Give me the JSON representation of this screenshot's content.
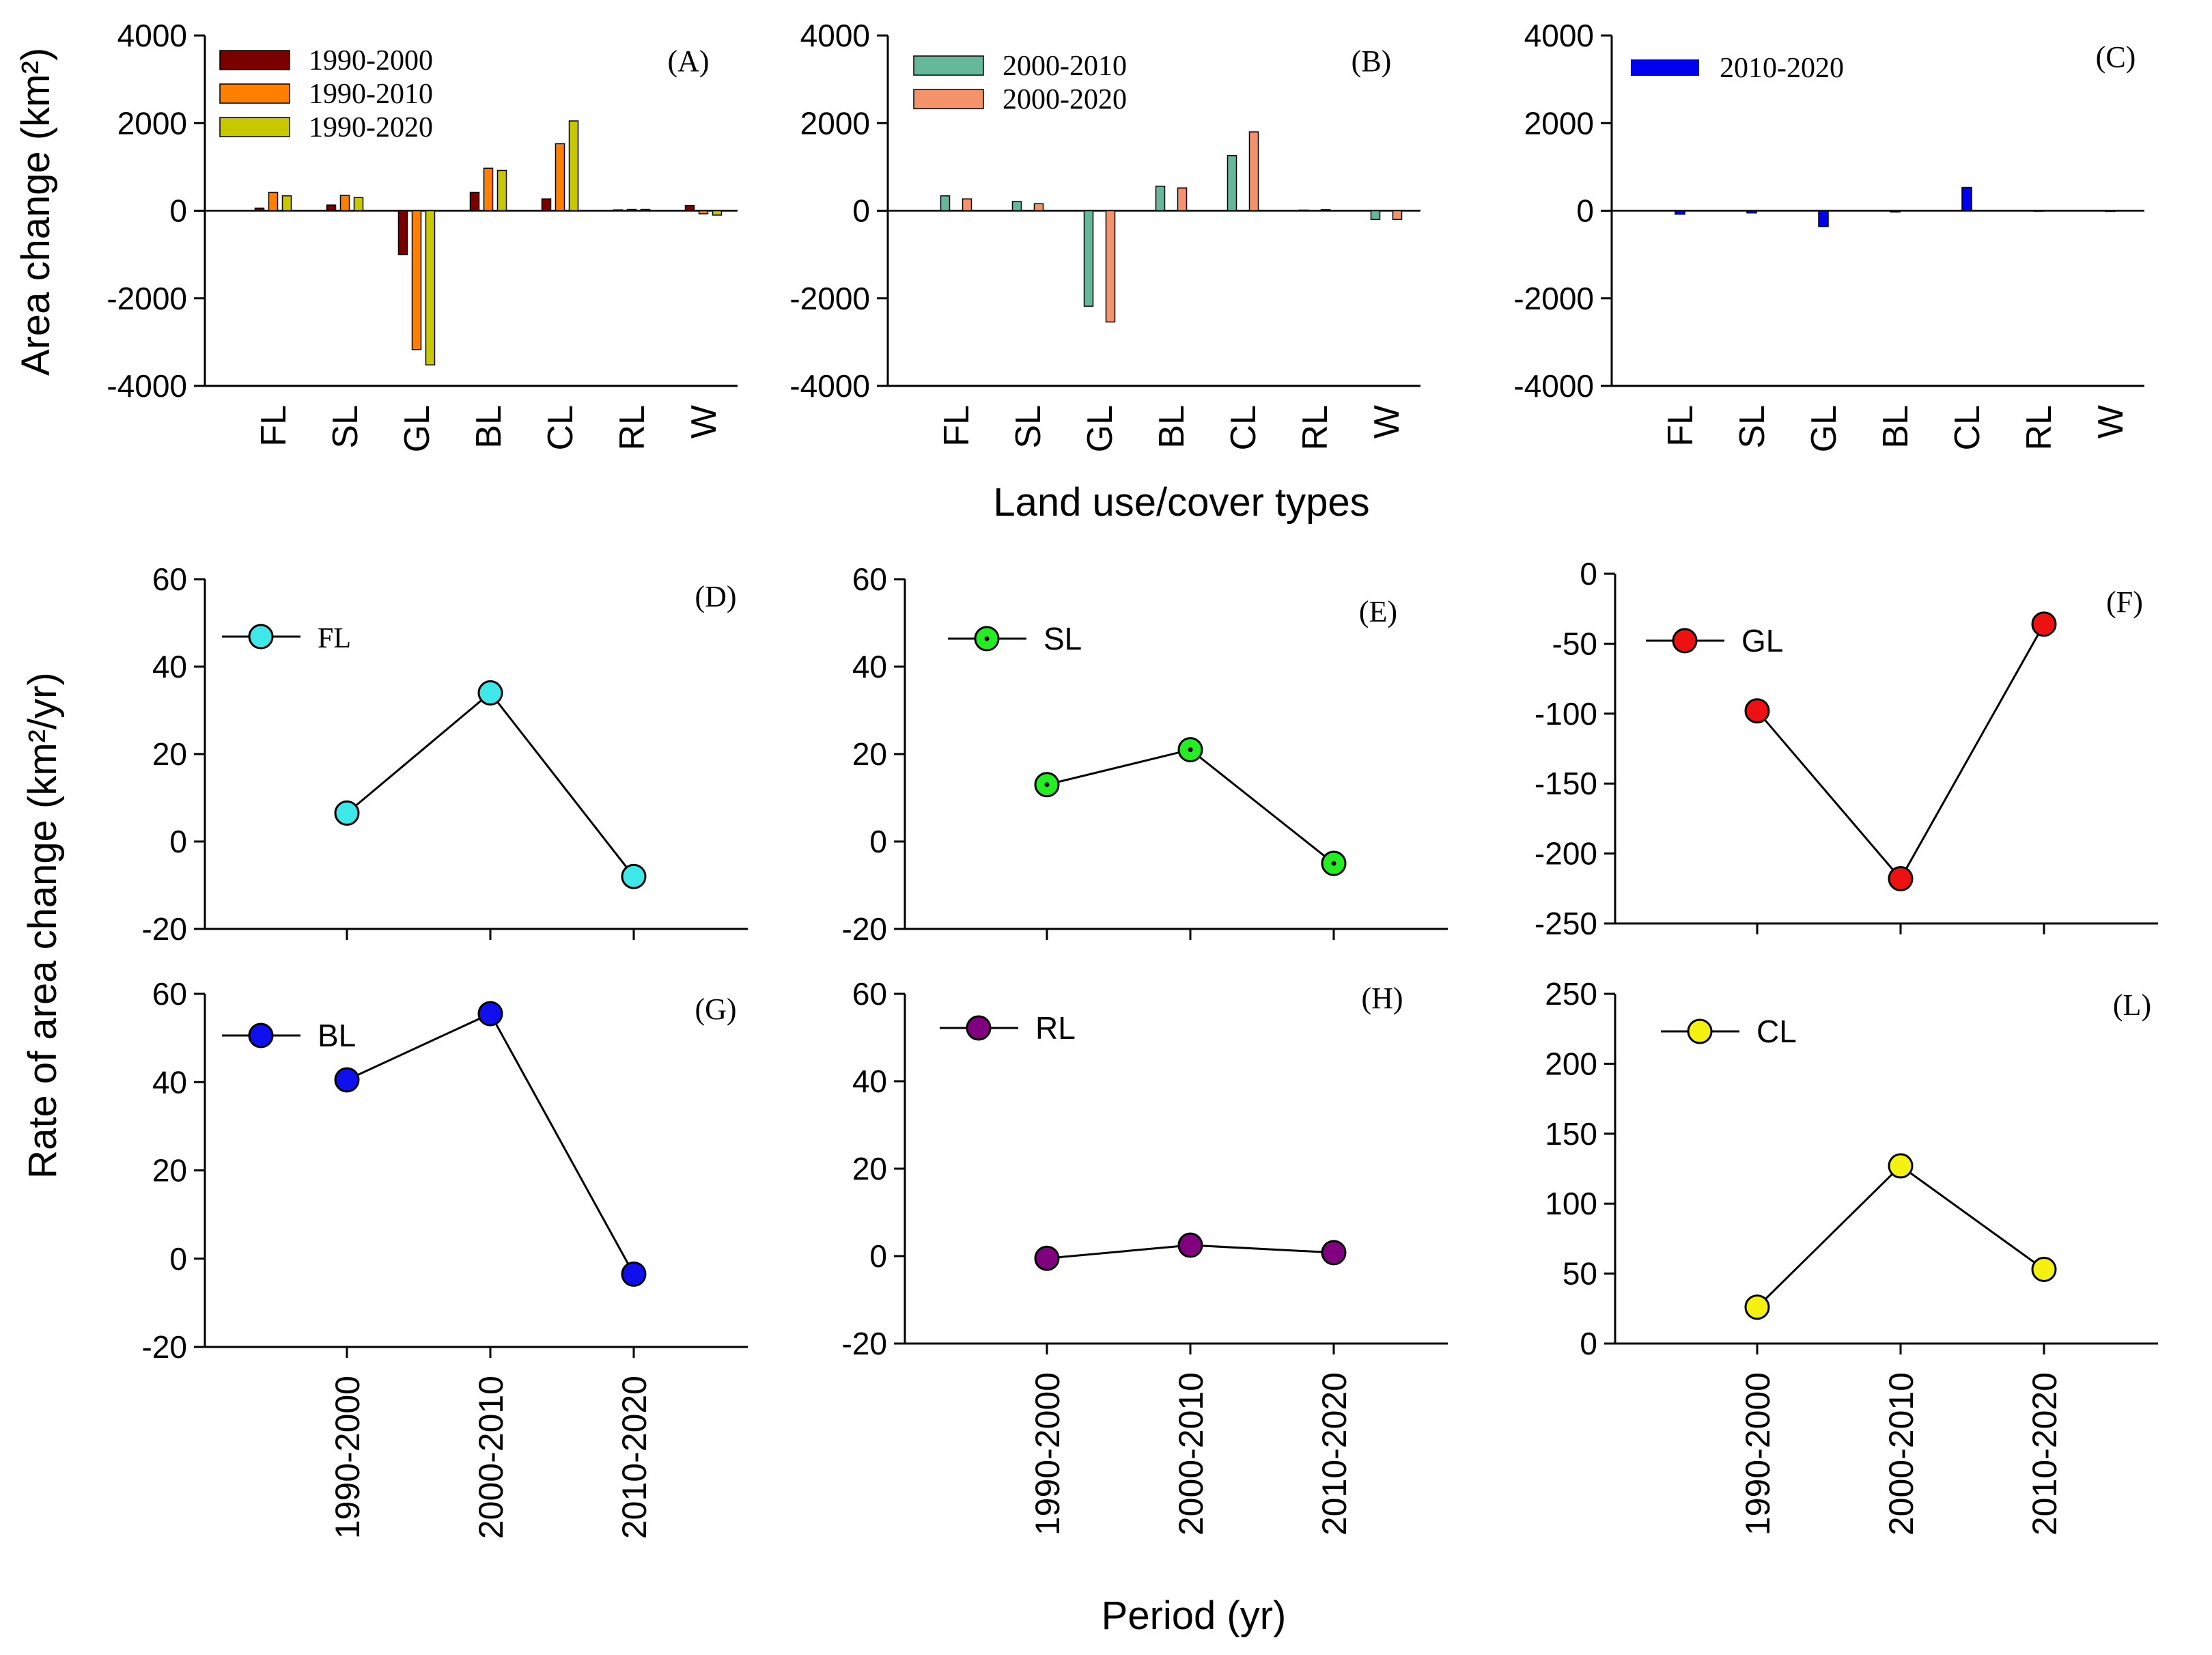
{
  "colors": {
    "1990-2000": "#7a0000",
    "1990-2010": "#ff8000",
    "1990-2020": "#c8c800",
    "2000-2010": "#66b89a",
    "2000-2020": "#f4926c",
    "2010-2020": "#0000ee",
    "FL": "#3ee8e8",
    "SL": "#22ee22",
    "GL": "#ee1111",
    "BL": "#1010ee",
    "RL": "#800080",
    "CL": "#f4f010"
  },
  "axis_titles": {
    "top_y": "Area change (km²)",
    "top_x": "Land use/cover types",
    "bottom_y": "Rate of area change (km²/yr)",
    "bottom_x": "Period (yr)"
  },
  "chart_data": [
    {
      "panel": "(A)",
      "type": "bar",
      "categories": [
        "FL",
        "SL",
        "GL",
        "BL",
        "CL",
        "RL",
        "W"
      ],
      "ylim": [
        -4000,
        4000
      ],
      "yticks": [
        "4000",
        "2000",
        "0",
        "-2000",
        "-4000"
      ],
      "series": [
        {
          "name": "1990-2000",
          "values": [
            60,
            130,
            -1000,
            420,
            270,
            20,
            120
          ]
        },
        {
          "name": "1990-2010",
          "values": [
            420,
            350,
            -3170,
            970,
            1530,
            30,
            -70
          ]
        },
        {
          "name": "1990-2020",
          "values": [
            340,
            300,
            -3520,
            920,
            2050,
            30,
            -100
          ]
        }
      ]
    },
    {
      "panel": "(B)",
      "type": "bar",
      "categories": [
        "FL",
        "SL",
        "GL",
        "BL",
        "CL",
        "RL",
        "W"
      ],
      "ylim": [
        -4000,
        4000
      ],
      "yticks": [
        "4000",
        "2000",
        "0",
        "-2000",
        "-4000"
      ],
      "series": [
        {
          "name": "2000-2010",
          "values": [
            340,
            210,
            -2180,
            560,
            1260,
            15,
            -200
          ]
        },
        {
          "name": "2000-2020",
          "values": [
            270,
            160,
            -2540,
            520,
            1800,
            25,
            -200
          ]
        }
      ]
    },
    {
      "panel": "(C)",
      "type": "bar",
      "categories": [
        "FL",
        "SL",
        "GL",
        "BL",
        "CL",
        "RL",
        "W"
      ],
      "ylim": [
        -4000,
        4000
      ],
      "yticks": [
        "4000",
        "2000",
        "0",
        "-2000",
        "-4000"
      ],
      "series": [
        {
          "name": "2010-2020",
          "values": [
            -80,
            -50,
            -360,
            -30,
            530,
            5,
            0
          ]
        }
      ]
    },
    {
      "panel": "(D)",
      "type": "line",
      "series_name": "FL",
      "categories": [
        "1990-2000",
        "2000-2010",
        "2010-2020"
      ],
      "values": [
        6.5,
        34,
        -8
      ],
      "ylim": [
        -20,
        60
      ],
      "yticks": [
        "60",
        "40",
        "20",
        "0",
        "-20"
      ]
    },
    {
      "panel": "(E)",
      "type": "line",
      "series_name": "SL",
      "categories": [
        "1990-2000",
        "2000-2010",
        "2010-2020"
      ],
      "values": [
        13,
        21,
        -5
      ],
      "ylim": [
        -20,
        60
      ],
      "yticks": [
        "60",
        "40",
        "20",
        "0",
        "-20"
      ]
    },
    {
      "panel": "(F)",
      "type": "line",
      "series_name": "GL",
      "categories": [
        "1990-2000",
        "2000-2010",
        "2010-2020"
      ],
      "values": [
        -98,
        -218,
        -36
      ],
      "ylim": [
        -250,
        0
      ],
      "yticks": [
        "0",
        "-50",
        "-100",
        "-150",
        "-200",
        "-250"
      ]
    },
    {
      "panel": "(G)",
      "type": "line",
      "series_name": "BL",
      "categories": [
        "1990-2000",
        "2000-2010",
        "2010-2020"
      ],
      "values": [
        40.5,
        55.5,
        -3.5
      ],
      "ylim": [
        -20,
        60
      ],
      "yticks": [
        "60",
        "40",
        "20",
        "0",
        "-20"
      ]
    },
    {
      "panel": "(H)",
      "type": "line",
      "series_name": "RL",
      "categories": [
        "1990-2000",
        "2000-2010",
        "2010-2020"
      ],
      "values": [
        -0.5,
        2.5,
        0.8
      ],
      "ylim": [
        -20,
        60
      ],
      "yticks": [
        "60",
        "40",
        "20",
        "0",
        "-20"
      ]
    },
    {
      "panel": "(L)",
      "type": "line",
      "series_name": "CL",
      "categories": [
        "1990-2000",
        "2000-2010",
        "2010-2020"
      ],
      "values": [
        26,
        127,
        53
      ],
      "ylim": [
        0,
        250
      ],
      "yticks": [
        "250",
        "200",
        "150",
        "100",
        "50",
        "0"
      ]
    }
  ]
}
